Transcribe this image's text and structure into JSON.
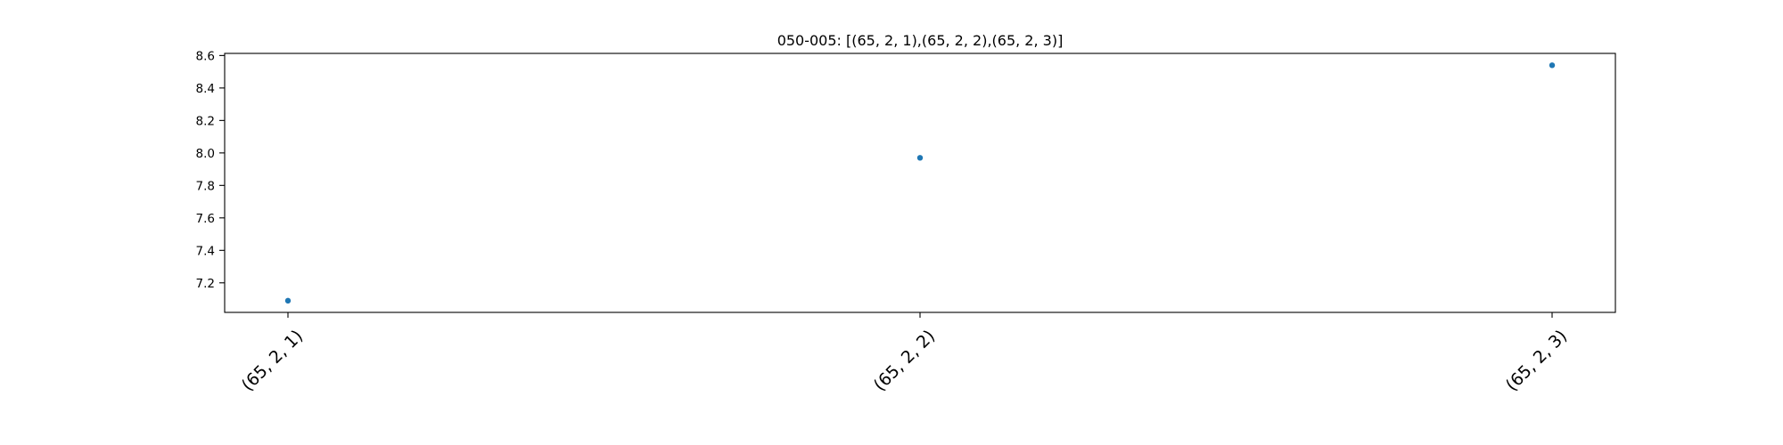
{
  "chart_data": {
    "type": "scatter",
    "title": "050-005: [(65, 2, 1),(65, 2, 2),(65, 2, 3)]",
    "xlabel": "",
    "ylabel": "",
    "categories": [
      "(65, 2, 1)",
      "(65, 2, 2)",
      "(65, 2, 3)"
    ],
    "values": [
      7.09,
      7.97,
      8.54
    ],
    "y_ticks": [
      "7.2",
      "7.4",
      "7.6",
      "7.8",
      "8.0",
      "8.2",
      "8.4",
      "8.6"
    ],
    "y_tick_values": [
      7.2,
      7.4,
      7.6,
      7.8,
      8.0,
      8.2,
      8.4,
      8.6
    ],
    "ylim": [
      7.018,
      8.613
    ],
    "x_tick_rotation_deg": 45,
    "grid": false,
    "legend": "none",
    "marker_color": "#1f77b4"
  }
}
